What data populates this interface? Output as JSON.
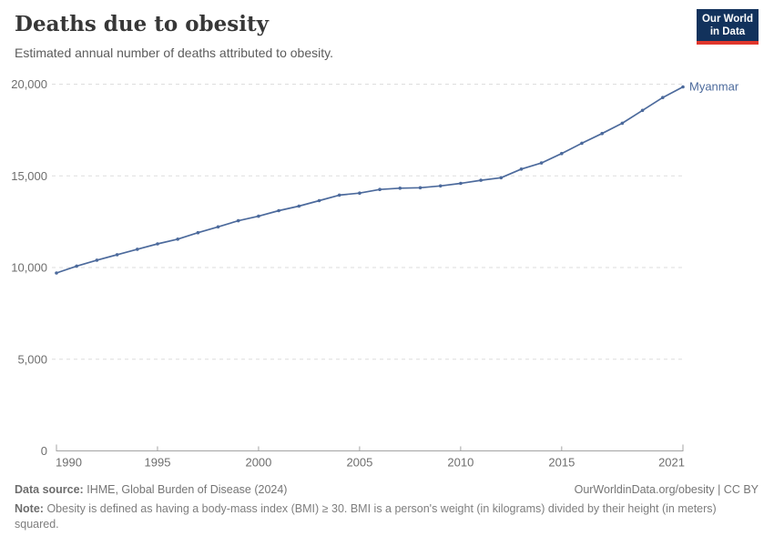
{
  "header": {
    "title": "Deaths due to obesity",
    "subtitle": "Estimated annual number of deaths attributed to obesity.",
    "logo": {
      "line1": "Our World",
      "line2": "in Data"
    }
  },
  "chart_data": {
    "type": "line",
    "title": "Deaths due to obesity",
    "xlabel": "",
    "ylabel": "",
    "xlim": [
      1990,
      2021
    ],
    "ylim": [
      0,
      20000
    ],
    "x_ticks": [
      1990,
      1995,
      2000,
      2005,
      2010,
      2015,
      2021
    ],
    "y_ticks": [
      0,
      5000,
      10000,
      15000,
      20000
    ],
    "grid": "horizontal-dashed",
    "legend_position": "end-of-line-label",
    "series": [
      {
        "name": "Myanmar",
        "color": "#4c6a9c",
        "x": [
          1990,
          1991,
          1992,
          1993,
          1994,
          1995,
          1996,
          1997,
          1998,
          1999,
          2000,
          2001,
          2002,
          2003,
          2004,
          2005,
          2006,
          2007,
          2008,
          2009,
          2010,
          2011,
          2012,
          2013,
          2014,
          2015,
          2016,
          2017,
          2018,
          2019,
          2020,
          2021
        ],
        "values": [
          9700,
          10080,
          10400,
          10700,
          11000,
          11290,
          11550,
          11900,
          12220,
          12550,
          12800,
          13100,
          13350,
          13650,
          13950,
          14060,
          14260,
          14330,
          14350,
          14450,
          14590,
          14760,
          14900,
          15370,
          15700,
          16220,
          16780,
          17310,
          17870,
          18570,
          19270,
          19850
        ]
      }
    ]
  },
  "footer": {
    "datasource_label": "Data source:",
    "datasource_value": "IHME, Global Burden of Disease (2024)",
    "link": "OurWorldinData.org/obesity | CC BY",
    "note_label": "Note:",
    "note_text": "Obesity is defined as having a body-mass index (BMI) ≥ 30. BMI is a person's weight (in kilograms) divided by their height (in meters) squared."
  },
  "colors": {
    "line": "#4c6a9c",
    "grid": "#dedede",
    "axis": "#a3a3a3",
    "tick_label": "#6e6e6e",
    "title": "#373737",
    "logo_bg": "#12325c",
    "logo_stripe": "#e0362c"
  }
}
